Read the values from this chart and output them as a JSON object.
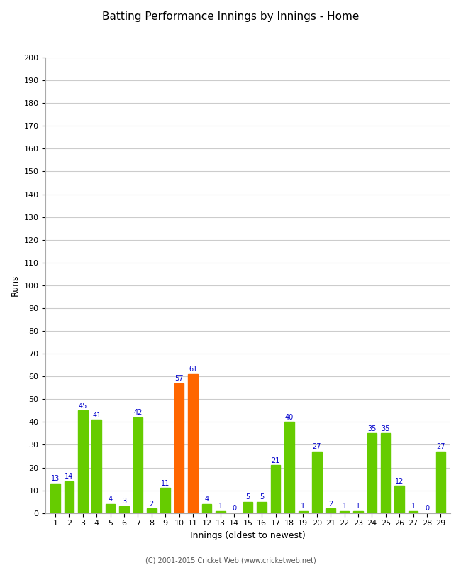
{
  "title": "Batting Performance Innings by Innings - Home",
  "xlabel": "Innings (oldest to newest)",
  "ylabel": "Runs",
  "values": [
    13,
    14,
    45,
    41,
    4,
    3,
    42,
    2,
    11,
    57,
    61,
    4,
    1,
    0,
    5,
    5,
    21,
    40,
    1,
    27,
    2,
    1,
    1,
    35,
    35,
    12,
    1,
    0,
    27
  ],
  "bar_colors": [
    "#66cc00",
    "#66cc00",
    "#66cc00",
    "#66cc00",
    "#66cc00",
    "#66cc00",
    "#66cc00",
    "#66cc00",
    "#66cc00",
    "#ff6600",
    "#ff6600",
    "#66cc00",
    "#66cc00",
    "#66cc00",
    "#66cc00",
    "#66cc00",
    "#66cc00",
    "#66cc00",
    "#66cc00",
    "#66cc00",
    "#66cc00",
    "#66cc00",
    "#66cc00",
    "#66cc00",
    "#66cc00",
    "#66cc00",
    "#66cc00",
    "#66cc00",
    "#66cc00"
  ],
  "ylim": [
    0,
    200
  ],
  "yticks": [
    0,
    10,
    20,
    30,
    40,
    50,
    60,
    70,
    80,
    90,
    100,
    110,
    120,
    130,
    140,
    150,
    160,
    170,
    180,
    190,
    200
  ],
  "label_color": "#0000cc",
  "label_fontsize": 7,
  "axis_fontsize": 8,
  "title_fontsize": 11,
  "footer": "(C) 2001-2015 Cricket Web (www.cricketweb.net)",
  "background_color": "#ffffff",
  "grid_color": "#cccccc"
}
